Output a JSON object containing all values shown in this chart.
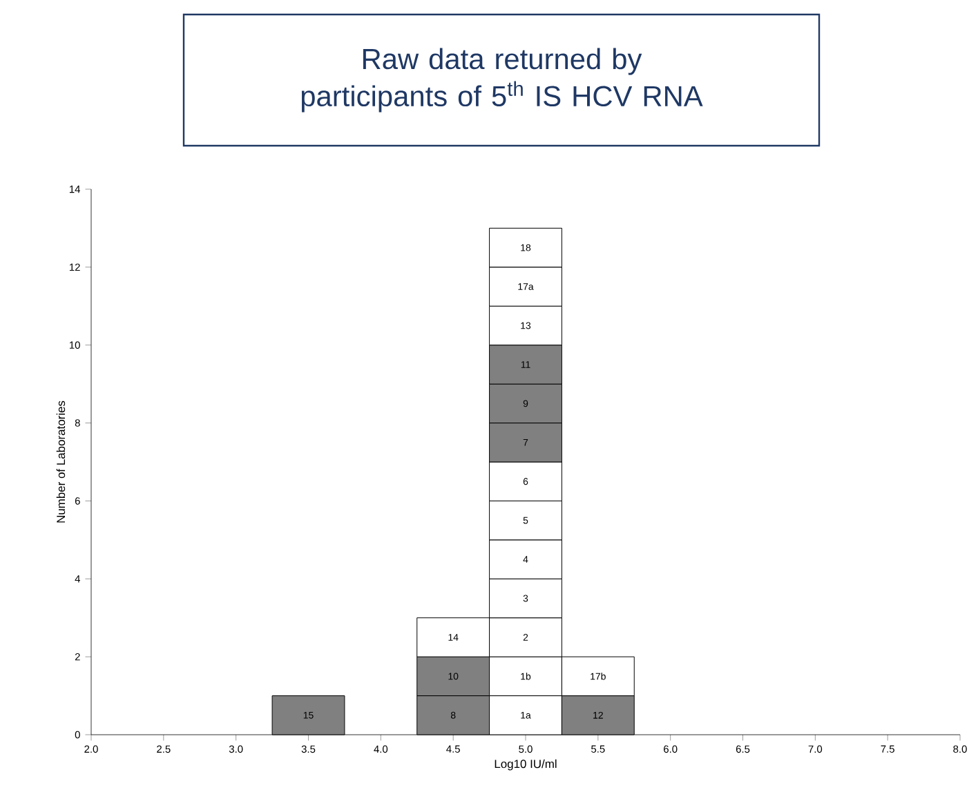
{
  "chart_data": {
    "type": "bar",
    "stacked": true,
    "title": "Raw data returned by participants of 5$^{th}$ IS HCV RNA",
    "xlabel": "Log10 IU/ml",
    "ylabel": "Number of Laboratories",
    "x": [
      3.5,
      4.5,
      5.0,
      5.5
    ],
    "series": [
      {
        "values": [
          1,
          1,
          1,
          1
        ],
        "colors": [
          "#808080",
          "#808080",
          "#ffffff",
          "#808080"
        ]
      },
      {
        "values": [
          null,
          1,
          1,
          1
        ],
        "colors": [
          null,
          "#808080",
          "#ffffff",
          "#ffffff"
        ]
      },
      {
        "values": [
          null,
          1,
          1,
          null
        ],
        "colors": [
          null,
          "#ffffff",
          "#ffffff",
          null
        ]
      },
      {
        "values": [
          null,
          null,
          1,
          null
        ],
        "colors": [
          null,
          null,
          "#ffffff",
          null
        ]
      },
      {
        "values": [
          null,
          null,
          1,
          null
        ],
        "colors": [
          null,
          null,
          "#ffffff",
          null
        ]
      },
      {
        "values": [
          null,
          null,
          1,
          null
        ],
        "colors": [
          null,
          null,
          "#ffffff",
          null
        ]
      },
      {
        "values": [
          null,
          null,
          1,
          null
        ],
        "colors": [
          null,
          null,
          "#ffffff",
          null
        ]
      },
      {
        "values": [
          null,
          null,
          1,
          null
        ],
        "colors": [
          null,
          null,
          "#808080",
          null
        ]
      },
      {
        "values": [
          null,
          null,
          1,
          null
        ],
        "colors": [
          null,
          null,
          "#808080",
          null
        ]
      },
      {
        "values": [
          null,
          null,
          1,
          null
        ],
        "colors": [
          null,
          null,
          "#808080",
          null
        ]
      },
      {
        "values": [
          null,
          null,
          1,
          null
        ],
        "colors": [
          null,
          null,
          "#ffffff",
          null
        ]
      },
      {
        "values": [
          null,
          null,
          1,
          null
        ],
        "colors": [
          null,
          null,
          "#ffffff",
          null
        ]
      },
      {
        "values": [
          null,
          null,
          1,
          null
        ],
        "colors": [
          null,
          null,
          "#ffffff",
          null
        ]
      }
    ],
    "annotations": [
      "15",
      "8",
      "1a",
      "12",
      "10",
      "1b",
      "17b",
      "14",
      "2",
      "3",
      "4",
      "5",
      "6",
      "7",
      "9",
      "11",
      "13",
      "17a",
      "18"
    ],
    "xlim": [
      2,
      8
    ],
    "xticks": [
      {
        "value": 2,
        "label": "2.0"
      },
      {
        "value": 2.5,
        "label": "2.5"
      },
      {
        "value": 3,
        "label": "3.0"
      },
      {
        "value": 3.5,
        "label": "3.5"
      },
      {
        "value": 4,
        "label": "4.0"
      },
      {
        "value": 4.5,
        "label": "4.5"
      },
      {
        "value": 5,
        "label": "5.0"
      },
      {
        "value": 5.5,
        "label": "5.5"
      },
      {
        "value": 6,
        "label": "6.0"
      },
      {
        "value": 6.5,
        "label": "6.5"
      },
      {
        "value": 7,
        "label": "7.0"
      },
      {
        "value": 7.5,
        "label": "7.5"
      },
      {
        "value": 8,
        "label": "8.0"
      }
    ],
    "ylim": [
      0,
      14
    ],
    "yticks": [
      0,
      2,
      4,
      6,
      8,
      10,
      12,
      14
    ],
    "grid": false
  }
}
